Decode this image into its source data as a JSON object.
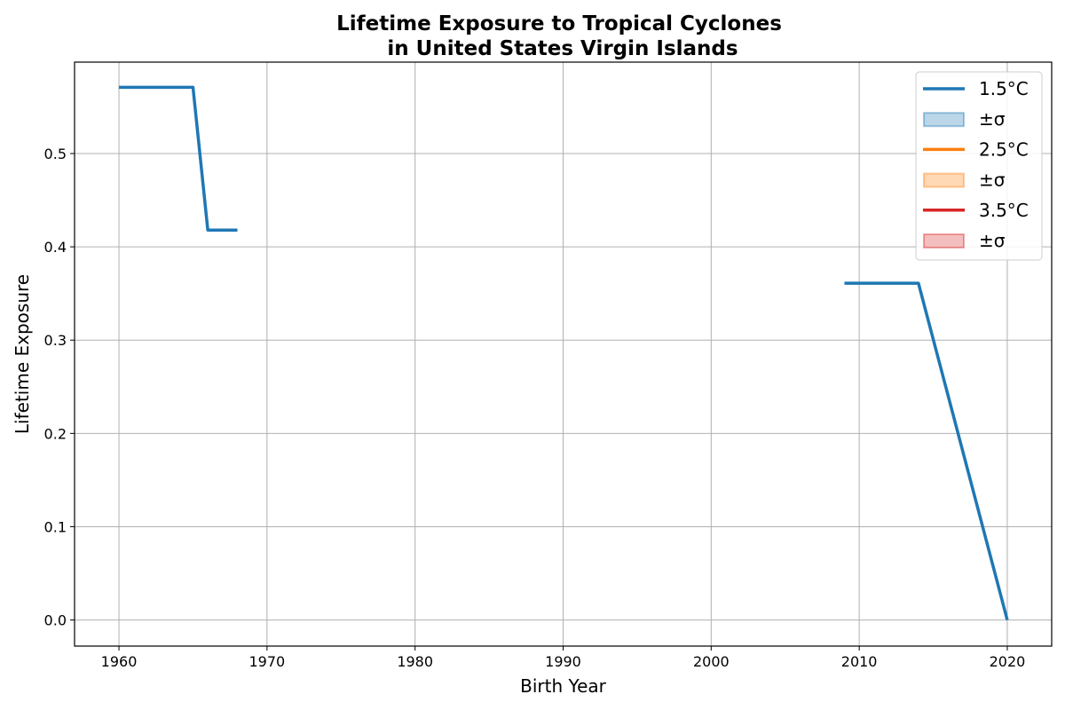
{
  "chart_data": {
    "type": "line",
    "title_line1": "Lifetime Exposure to Tropical Cyclones",
    "title_line2": "in United States Virgin Islands",
    "xlabel": "Birth Year",
    "ylabel": "Lifetime Exposure",
    "xlim": [
      1957,
      2023
    ],
    "ylim": [
      -0.028,
      0.598
    ],
    "x_ticks": [
      1960,
      1970,
      1980,
      1990,
      2000,
      2010,
      2020
    ],
    "y_ticks": [
      0.0,
      0.1,
      0.2,
      0.3,
      0.4,
      0.5
    ],
    "y_tick_labels": [
      "0.0",
      "0.1",
      "0.2",
      "0.3",
      "0.4",
      "0.5"
    ],
    "grid": true,
    "legend_placement": "top-right",
    "series": [
      {
        "name": "1.5°C",
        "color": "#1f77b4",
        "segments": [
          [
            [
              1960,
              0.571
            ],
            [
              1961,
              0.571
            ],
            [
              1962,
              0.571
            ],
            [
              1963,
              0.571
            ],
            [
              1964,
              0.571
            ],
            [
              1965,
              0.571
            ],
            [
              1966,
              0.418
            ],
            [
              1967,
              0.418
            ],
            [
              1968,
              0.418
            ]
          ],
          [
            [
              2009,
              0.361
            ],
            [
              2010,
              0.361
            ],
            [
              2011,
              0.361
            ],
            [
              2012,
              0.361
            ],
            [
              2013,
              0.361
            ],
            [
              2014,
              0.361
            ],
            [
              2020,
              0.0
            ]
          ]
        ]
      },
      {
        "name": "2.5°C",
        "color": "#ff7f0e",
        "segments": []
      },
      {
        "name": "3.5°C",
        "color": "#d62728",
        "segments": []
      }
    ],
    "legend": [
      {
        "label": "1.5°C",
        "kind": "line",
        "color": "#1f77b4"
      },
      {
        "label": "±σ",
        "kind": "band",
        "color": "#1f77b4"
      },
      {
        "label": "2.5°C",
        "kind": "line",
        "color": "#ff7f0e"
      },
      {
        "label": "±σ",
        "kind": "band",
        "color": "#ff7f0e"
      },
      {
        "label": "3.5°C",
        "kind": "line",
        "color": "#d62728"
      },
      {
        "label": "±σ",
        "kind": "band",
        "color": "#d62728"
      }
    ]
  }
}
